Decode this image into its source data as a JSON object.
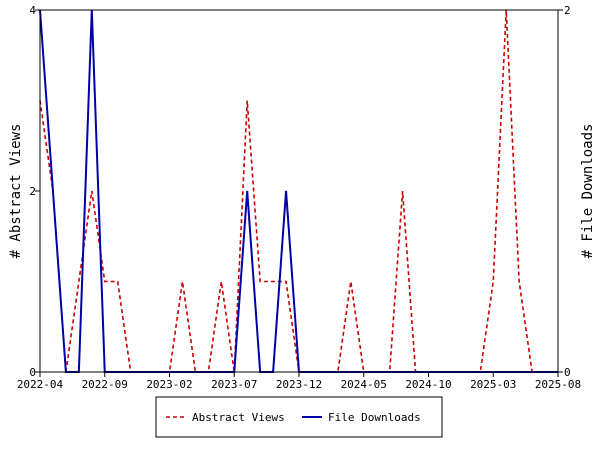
{
  "chart_data": {
    "type": "line",
    "x": [
      "2022-04",
      "2022-05",
      "2022-06",
      "2022-07",
      "2022-08",
      "2022-09",
      "2022-10",
      "2022-11",
      "2022-12",
      "2023-01",
      "2023-02",
      "2023-03",
      "2023-04",
      "2023-05",
      "2023-06",
      "2023-07",
      "2023-08",
      "2023-09",
      "2023-10",
      "2023-11",
      "2023-12",
      "2024-01",
      "2024-02",
      "2024-03",
      "2024-04",
      "2024-05",
      "2024-06",
      "2024-07",
      "2024-08",
      "2024-09",
      "2024-10",
      "2024-11",
      "2024-12",
      "2025-01",
      "2025-02",
      "2025-03",
      "2025-04",
      "2025-05",
      "2025-06",
      "2025-07",
      "2025-08"
    ],
    "x_tick_labels": [
      "2022-04",
      "2022-09",
      "2023-02",
      "2023-07",
      "2023-12",
      "2024-05",
      "2024-10",
      "2025-03",
      "2025-08"
    ],
    "series": [
      {
        "name": "Abstract Views",
        "axis": "left",
        "color": "#cc0000",
        "dash": "dashed",
        "values": [
          3,
          2,
          0,
          1,
          2,
          1,
          1,
          0,
          0,
          0,
          0,
          1,
          0,
          0,
          1,
          0,
          3,
          1,
          1,
          1,
          0,
          0,
          0,
          0,
          1,
          0,
          0,
          0,
          2,
          0,
          0,
          0,
          0,
          0,
          0,
          1,
          4,
          1,
          0,
          0,
          0
        ]
      },
      {
        "name": "File Downloads",
        "axis": "right",
        "color": "#0000aa",
        "dash": "solid",
        "values": [
          2,
          1,
          0,
          0,
          2,
          0,
          0,
          0,
          0,
          0,
          0,
          0,
          0,
          0,
          0,
          0,
          1,
          0,
          0,
          1,
          0,
          0,
          0,
          0,
          0,
          0,
          0,
          0,
          0,
          0,
          0,
          0,
          0,
          0,
          0,
          0,
          0,
          0,
          0,
          0,
          0
        ]
      }
    ],
    "ylabel": "# Abstract Views",
    "y2label": "# File Downloads",
    "ylim": [
      0,
      4
    ],
    "y2lim": [
      0,
      2
    ],
    "y_ticks": [
      "0",
      "2",
      "4"
    ],
    "y2_ticks": [
      "0",
      "2"
    ],
    "grid": false,
    "legend_placement": "bottom-center"
  }
}
